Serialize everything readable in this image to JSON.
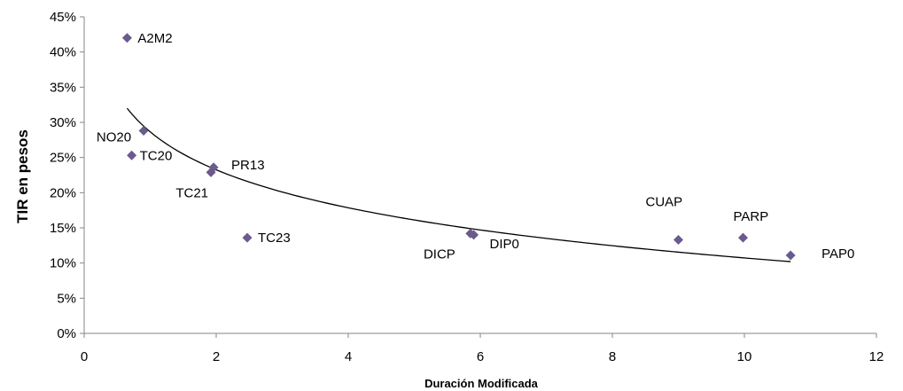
{
  "chart_data": {
    "type": "scatter",
    "title": "",
    "xlabel": "Duración Modificada",
    "ylabel": "TIR en pesos",
    "xlim": [
      0,
      12
    ],
    "ylim": [
      0,
      0.45
    ],
    "x_ticks": [
      0,
      2,
      4,
      6,
      8,
      10,
      12
    ],
    "x_tick_labels": [
      "0",
      "2",
      "4",
      "6",
      "8",
      "10",
      "12"
    ],
    "y_ticks": [
      0,
      0.05,
      0.1,
      0.15,
      0.2,
      0.25,
      0.3,
      0.35,
      0.4,
      0.45
    ],
    "y_tick_labels": [
      "0%",
      "5%",
      "10%",
      "15%",
      "20%",
      "25%",
      "30%",
      "35%",
      "40%",
      "45%"
    ],
    "grid": false,
    "legend": "none",
    "marker": "diamond",
    "marker_color": "#6b5a8c",
    "trendline": {
      "type": "logarithmic",
      "color": "#000000",
      "x_range": [
        0.65,
        10.7
      ],
      "y_at_start": 0.32,
      "y_at_end": 0.102
    },
    "points": [
      {
        "label": "A2M2",
        "x": 0.65,
        "y": 0.42
      },
      {
        "label": "NO20",
        "x": 0.9,
        "y": 0.288
      },
      {
        "label": "TC20",
        "x": 0.72,
        "y": 0.253
      },
      {
        "label": "TC21",
        "x": 1.92,
        "y": 0.229
      },
      {
        "label": "PR13",
        "x": 1.96,
        "y": 0.236
      },
      {
        "label": "TC23",
        "x": 2.47,
        "y": 0.136
      },
      {
        "label": "DICP",
        "x": 5.85,
        "y": 0.142
      },
      {
        "label": "DIP0",
        "x": 5.9,
        "y": 0.14
      },
      {
        "label": "CUAP",
        "x": 9.0,
        "y": 0.133
      },
      {
        "label": "PARP",
        "x": 9.98,
        "y": 0.136
      },
      {
        "label": "PAP0",
        "x": 10.7,
        "y": 0.111
      }
    ]
  }
}
